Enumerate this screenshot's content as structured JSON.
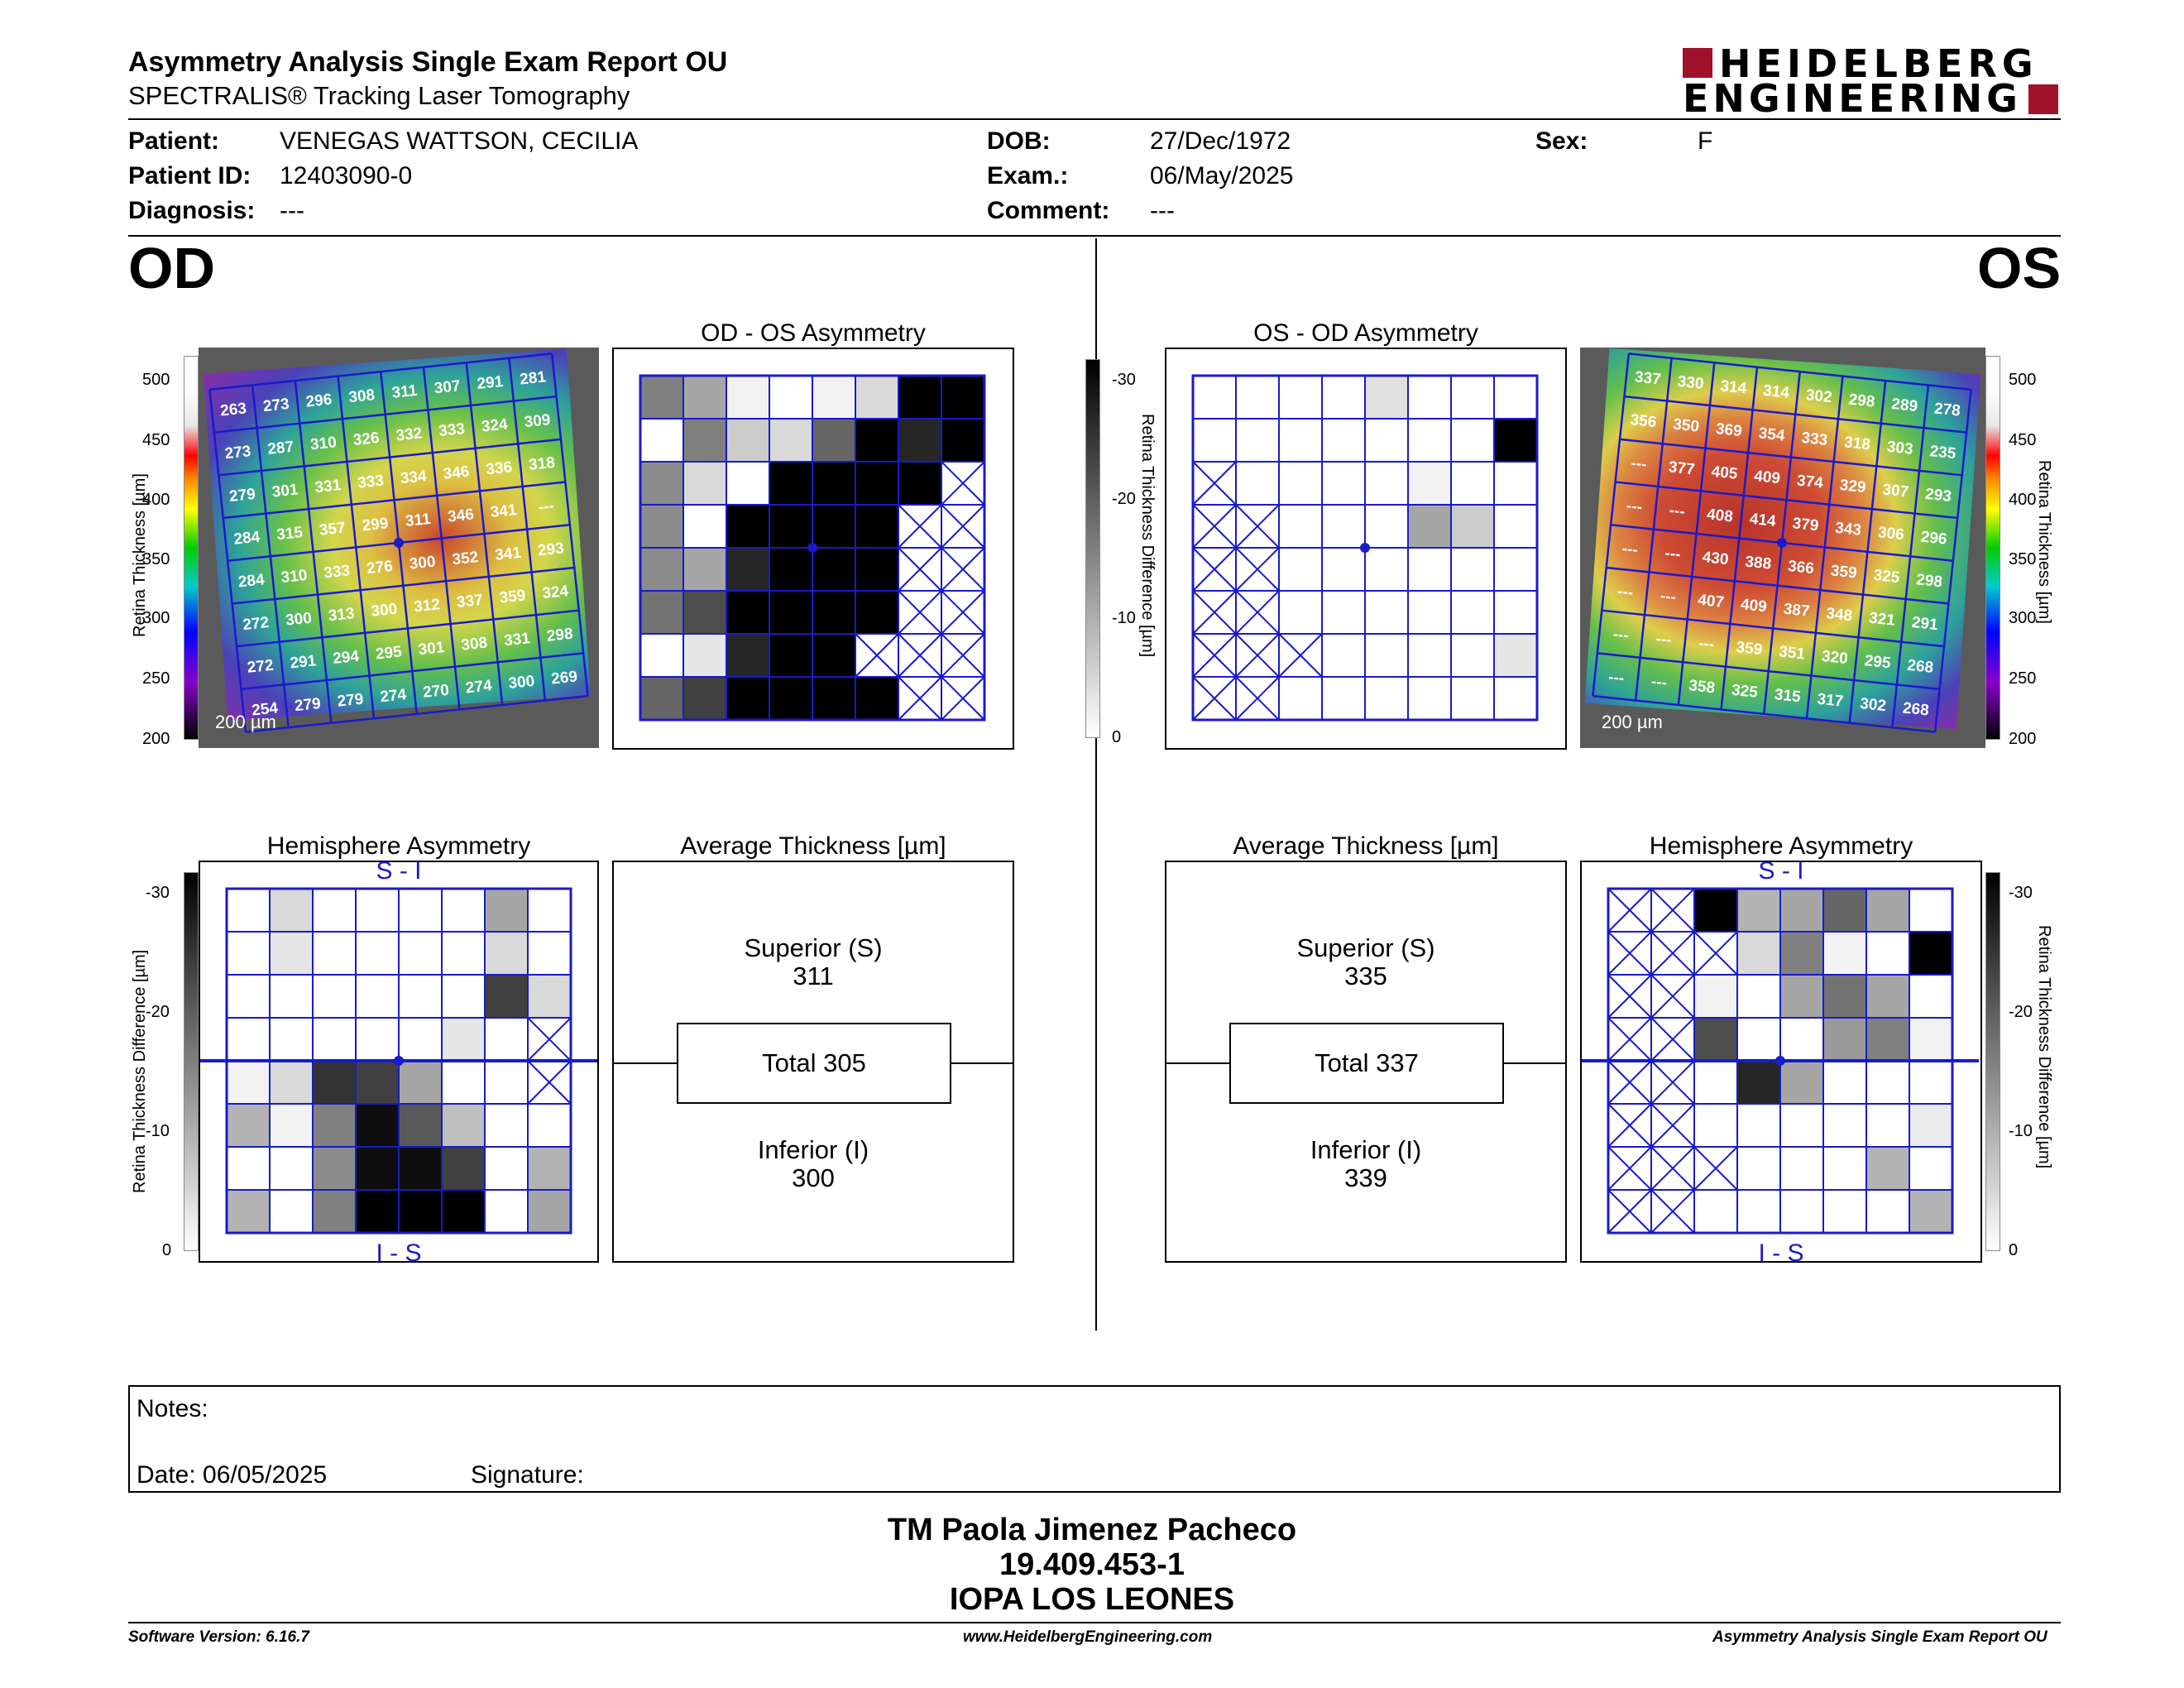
{
  "report": {
    "title": "Asymmetry Analysis Single Exam Report OU",
    "subtitle": "SPECTRALIS® Tracking Laser Tomography",
    "logo_line1": "HEIDELBERG",
    "logo_line2": "ENGINEERING",
    "brand_color": "#a0122a"
  },
  "patient": {
    "patient_label": "Patient:",
    "patient_value": "VENEGAS WATTSON, CECILIA",
    "id_label": "Patient ID:",
    "id_value": "12403090-0",
    "diagnosis_label": "Diagnosis:",
    "diagnosis_value": "---",
    "dob_label": "DOB:",
    "dob_value": "27/Dec/1972",
    "exam_label": "Exam.:",
    "exam_value": "06/May/2025",
    "comment_label": "Comment:",
    "comment_value": "---",
    "sex_label": "Sex:",
    "sex_value": "F"
  },
  "od": {
    "eye_label": "OD",
    "asym_title": "OD - OS Asymmetry",
    "hemi_title": "Hemisphere Asymmetry",
    "hemi_top": "S - I",
    "hemi_bottom": "I - S",
    "avg_title": "Average Thickness [µm]",
    "superior_label": "Superior (S)",
    "superior_value": "311",
    "total_text": "Total 305",
    "inferior_label": "Inferior (I)",
    "inferior_value": "300",
    "scale_label": "200 µm",
    "thickness_grid": [
      [
        "263",
        "273",
        "296",
        "308",
        "311",
        "307",
        "291",
        "281"
      ],
      [
        "273",
        "287",
        "310",
        "326",
        "332",
        "333",
        "324",
        "309"
      ],
      [
        "279",
        "301",
        "331",
        "333",
        "334",
        "346",
        "336",
        "318"
      ],
      [
        "284",
        "315",
        "357",
        "299",
        "311",
        "346",
        "341",
        "---"
      ],
      [
        "284",
        "310",
        "333",
        "276",
        "300",
        "352",
        "341",
        "293"
      ],
      [
        "272",
        "300",
        "313",
        "300",
        "312",
        "337",
        "359",
        "324"
      ],
      [
        "272",
        "291",
        "294",
        "295",
        "301",
        "308",
        "331",
        "298"
      ],
      [
        "254",
        "279",
        "279",
        "274",
        "270",
        "274",
        "300",
        "269"
      ]
    ],
    "asym_grid": [
      [
        0.5,
        0.35,
        0.05,
        0,
        0.05,
        0.15,
        1,
        1
      ],
      [
        0,
        0.5,
        0.2,
        0.15,
        0.6,
        1,
        0.85,
        1
      ],
      [
        0.45,
        0.15,
        0,
        1,
        1,
        1,
        1,
        "x"
      ],
      [
        0.45,
        0,
        1,
        1,
        1,
        1,
        "x",
        "x"
      ],
      [
        0.45,
        0.35,
        0.85,
        1,
        1,
        1,
        "x",
        "x"
      ],
      [
        0.55,
        0.7,
        1,
        1,
        1,
        1,
        "x",
        "x"
      ],
      [
        0,
        0.1,
        0.85,
        1,
        1,
        "x",
        "x",
        "x"
      ],
      [
        0.6,
        0.75,
        1,
        1,
        1,
        1,
        "x",
        "x"
      ]
    ],
    "hemi_grid": [
      [
        0,
        0.15,
        0,
        0,
        0,
        0,
        0.35,
        0
      ],
      [
        0,
        0.1,
        0,
        0,
        0,
        0,
        0.15,
        0
      ],
      [
        0,
        0,
        0,
        0,
        0,
        0,
        0.75,
        0.15
      ],
      [
        0,
        0,
        0,
        0,
        0,
        0.1,
        0,
        "x"
      ],
      [
        0.05,
        0.15,
        0.8,
        0.75,
        0.35,
        0,
        0,
        "x"
      ],
      [
        0.3,
        0.05,
        0.5,
        0.95,
        0.65,
        0.25,
        0,
        0
      ],
      [
        0,
        0,
        0.45,
        0.95,
        0.95,
        0.75,
        0,
        0.3
      ],
      [
        0.3,
        0,
        0.5,
        1,
        1,
        1,
        0,
        0.35
      ]
    ]
  },
  "os": {
    "eye_label": "OS",
    "asym_title": "OS - OD Asymmetry",
    "hemi_title": "Hemisphere Asymmetry",
    "hemi_top": "S - I",
    "hemi_bottom": "I - S",
    "avg_title": "Average Thickness [µm]",
    "superior_label": "Superior (S)",
    "superior_value": "335",
    "total_text": "Total 337",
    "inferior_label": "Inferior (I)",
    "inferior_value": "339",
    "scale_label": "200 µm",
    "thickness_grid": [
      [
        "337",
        "330",
        "314",
        "314",
        "302",
        "298",
        "289",
        "278"
      ],
      [
        "356",
        "350",
        "369",
        "354",
        "333",
        "318",
        "303",
        "235"
      ],
      [
        "---",
        "377",
        "405",
        "409",
        "374",
        "329",
        "307",
        "293"
      ],
      [
        "---",
        "---",
        "408",
        "414",
        "379",
        "343",
        "306",
        "296"
      ],
      [
        "---",
        "---",
        "430",
        "388",
        "366",
        "359",
        "325",
        "298"
      ],
      [
        "---",
        "---",
        "407",
        "409",
        "387",
        "348",
        "321",
        "291"
      ],
      [
        "---",
        "---",
        "---",
        "359",
        "351",
        "320",
        "295",
        "268"
      ],
      [
        "---",
        "---",
        "358",
        "325",
        "315",
        "317",
        "302",
        "268"
      ]
    ],
    "asym_grid": [
      [
        0,
        0,
        0,
        0,
        0.12,
        0,
        0,
        0
      ],
      [
        0,
        0,
        0,
        0,
        0,
        0,
        0,
        1
      ],
      [
        "x",
        0,
        0,
        0,
        0,
        0.05,
        0,
        0
      ],
      [
        "x",
        "x",
        0,
        0,
        0,
        0.35,
        0.2,
        0
      ],
      [
        "x",
        "x",
        0,
        0,
        0,
        0,
        0,
        0
      ],
      [
        "x",
        "x",
        0,
        0,
        0,
        0,
        0,
        0
      ],
      [
        "x",
        "x",
        "x",
        0,
        0,
        0,
        0,
        0.1
      ],
      [
        "x",
        "x",
        0,
        0,
        0,
        0,
        0,
        0
      ]
    ],
    "hemi_grid": [
      [
        "x",
        "x",
        1,
        0.3,
        0.35,
        0.6,
        0.35,
        0
      ],
      [
        "x",
        "x",
        "x",
        0.15,
        0.5,
        0.05,
        0,
        1
      ],
      [
        "x",
        "x",
        0.05,
        0,
        0.35,
        0.55,
        0.35,
        0
      ],
      [
        "x",
        "x",
        0.7,
        0,
        0,
        0.4,
        0.5,
        0.05
      ],
      [
        "x",
        "x",
        0,
        0.85,
        0.35,
        0,
        0,
        0
      ],
      [
        "x",
        "x",
        0,
        0,
        0,
        0,
        0,
        0.08
      ],
      [
        "x",
        "x",
        "x",
        0,
        0,
        0,
        0.3,
        0
      ],
      [
        "x",
        "x",
        0,
        0,
        0,
        0,
        0,
        0.3
      ]
    ]
  },
  "scales": {
    "thickness_label": "Retina Thickness [µm]",
    "thickness_ticks": [
      "500",
      "450",
      "400",
      "350",
      "300",
      "250",
      "200"
    ],
    "diff_label": "Retina Thickness Difference [µm]",
    "diff_ticks": [
      "-30",
      "-20",
      "-10",
      "0"
    ],
    "grid_color": "#1a1acc"
  },
  "notes": {
    "notes_label": "Notes:",
    "date_label": "Date: 06/05/2025",
    "signature_label": "Signature:"
  },
  "signer": {
    "name": "TM Paola Jimenez Pacheco",
    "id": "19.409.453-1",
    "org": "IOPA LOS LEONES"
  },
  "footer": {
    "left": "Software Version: 6.16.7",
    "center": "www.HeidelbergEngineering.com",
    "right": "Asymmetry Analysis Single Exam Report OU"
  }
}
